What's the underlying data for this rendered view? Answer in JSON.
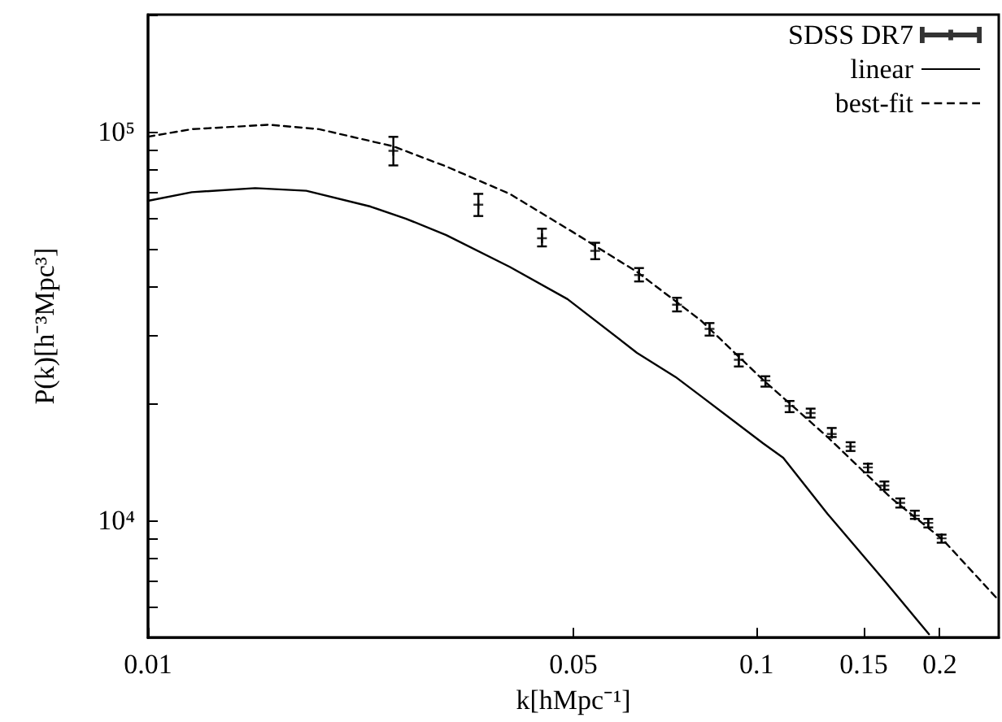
{
  "chart_data": {
    "type": "scatter",
    "xlabel": "k[hMpc⁻¹]",
    "ylabel": "P(k)[h⁻³Mpc³]",
    "log": "xy",
    "xlim": [
      0.01,
      0.25
    ],
    "ylim": [
      5000,
      200000
    ],
    "xticks": [
      0.01,
      0.05,
      0.1,
      0.15,
      0.2
    ],
    "yticks": [
      {
        "value": 6000,
        "label": null
      },
      {
        "value": 7000,
        "label": null
      },
      {
        "value": 8000,
        "label": null
      },
      {
        "value": 9000,
        "label": null
      },
      {
        "value": 10000,
        "label": "10⁴"
      },
      {
        "value": 20000,
        "label": null
      },
      {
        "value": 30000,
        "label": null
      },
      {
        "value": 40000,
        "label": null
      },
      {
        "value": 50000,
        "label": null
      },
      {
        "value": 60000,
        "label": null
      },
      {
        "value": 70000,
        "label": null
      },
      {
        "value": 80000,
        "label": null
      },
      {
        "value": 90000,
        "label": null
      },
      {
        "value": 100000,
        "label": "10⁵"
      },
      {
        "value": 200000,
        "label": null
      }
    ],
    "grid": false,
    "legend": "top right",
    "series": [
      {
        "name": "SDSS DR7",
        "color": "#000000",
        "marker": "cross",
        "x": [
          0.0253,
          0.0349,
          0.0444,
          0.0543,
          0.0641,
          0.074,
          0.0837,
          0.0935,
          0.1034,
          0.1133,
          0.1227,
          0.1329,
          0.1427,
          0.1524,
          0.1622,
          0.1722,
          0.182,
          0.1915,
          0.2014
        ],
        "values": [
          89300,
          64900,
          53200,
          49400,
          42800,
          35900,
          31100,
          25900,
          22900,
          19700,
          18900,
          16700,
          15500,
          13700,
          12300,
          11100,
          10300,
          9860,
          9000
        ],
        "errors": [
          [
            81900,
            97000
          ],
          [
            60700,
            69200
          ],
          [
            50700,
            56300
          ],
          [
            47000,
            51800
          ],
          [
            41200,
            44600
          ],
          [
            34500,
            37400
          ],
          [
            29900,
            32200
          ],
          [
            24900,
            26800
          ],
          [
            22100,
            23500
          ],
          [
            19000,
            20300
          ],
          [
            18400,
            19400
          ],
          [
            16400,
            17300
          ],
          [
            15100,
            15900
          ],
          [
            13300,
            14000
          ],
          [
            12000,
            12600
          ],
          [
            10800,
            11400
          ],
          [
            10100,
            10600
          ],
          [
            9600,
            10100
          ],
          [
            8770,
            9200
          ]
        ]
      },
      {
        "name": "linear",
        "type": "line",
        "color": "#000000",
        "line_style": "solid",
        "marker": "none",
        "x": [
          0.01,
          0.0118,
          0.015,
          0.0182,
          0.0232,
          0.0265,
          0.0309,
          0.0393,
          0.0489,
          0.0636,
          0.0736,
          0.081,
          0.1025,
          0.1106,
          0.1308,
          0.1627,
          0.192
        ],
        "values": [
          66400,
          69900,
          71600,
          70500,
          64200,
          59800,
          54200,
          44900,
          37100,
          27000,
          23400,
          20900,
          15800,
          14500,
          10400,
          6970,
          5100
        ]
      },
      {
        "name": "best-fit",
        "type": "line",
        "color": "#000000",
        "line_style": "dashed",
        "marker": "none",
        "x": [
          0.01,
          0.0118,
          0.0158,
          0.0191,
          0.0253,
          0.0309,
          0.0393,
          0.0499,
          0.0636,
          0.081,
          0.1025,
          0.1308,
          0.1667,
          0.2023,
          0.248
        ],
        "values": [
          97100,
          101500,
          104200,
          101500,
          91700,
          81400,
          69200,
          55200,
          43600,
          32700,
          23000,
          16400,
          11400,
          8930,
          6320
        ]
      }
    ]
  }
}
